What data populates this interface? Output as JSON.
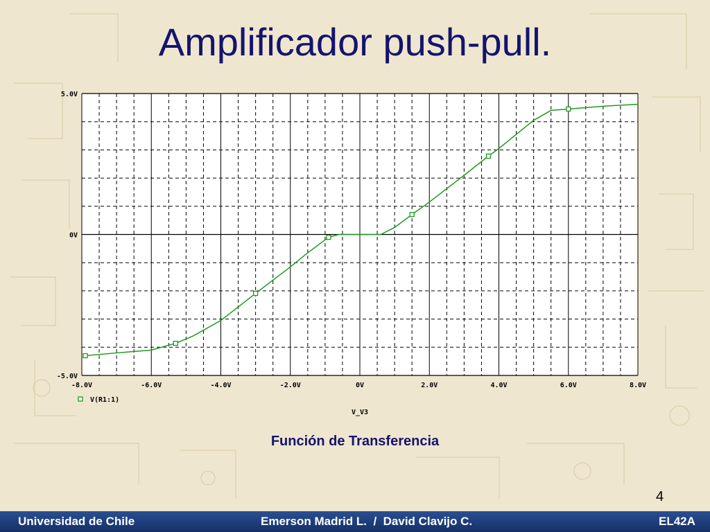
{
  "slide": {
    "title": "Amplificador push-pull.",
    "caption": "Función de Transferencia",
    "page_number": "4",
    "footer": {
      "left": "Universidad de Chile",
      "center": "Emerson Madrid L.  /  David Clavijo C.",
      "right": "EL42A"
    }
  },
  "chart_data": {
    "type": "line",
    "x_label": "V_V3",
    "xlim": [
      -8,
      8
    ],
    "ylim": [
      -5,
      5
    ],
    "xticks": [
      {
        "value": -8,
        "label": "-8.0V"
      },
      {
        "value": -6,
        "label": "-6.0V"
      },
      {
        "value": -4,
        "label": "-4.0V"
      },
      {
        "value": -2,
        "label": "-2.0V"
      },
      {
        "value": 0,
        "label": "0V"
      },
      {
        "value": 2,
        "label": "2.0V"
      },
      {
        "value": 4,
        "label": "4.0V"
      },
      {
        "value": 6,
        "label": "6.0V"
      },
      {
        "value": 8,
        "label": "8.0V"
      }
    ],
    "yticks": [
      {
        "value": -5,
        "label": "-5.0V"
      },
      {
        "value": 0,
        "label": "0V"
      },
      {
        "value": 5,
        "label": "5.0V"
      }
    ],
    "grid": true,
    "x": [
      -7.9,
      -7,
      -6,
      -5.3,
      -4.8,
      -4,
      -3,
      -2,
      -1.5,
      -0.9,
      -0.6,
      0,
      0.6,
      1,
      1.5,
      2,
      3,
      3.7,
      4,
      5,
      5.5,
      6,
      7,
      8
    ],
    "series": [
      {
        "name": "V(R1:1)",
        "color": "#1e9a1e",
        "values": [
          -4.3,
          -4.2,
          -4.1,
          -3.86,
          -3.6,
          -3.05,
          -2.09,
          -1.15,
          -0.65,
          -0.1,
          0,
          0,
          0,
          0.25,
          0.71,
          1.15,
          2.1,
          2.78,
          3.05,
          4.05,
          4.4,
          4.45,
          4.55,
          4.62
        ]
      }
    ]
  }
}
